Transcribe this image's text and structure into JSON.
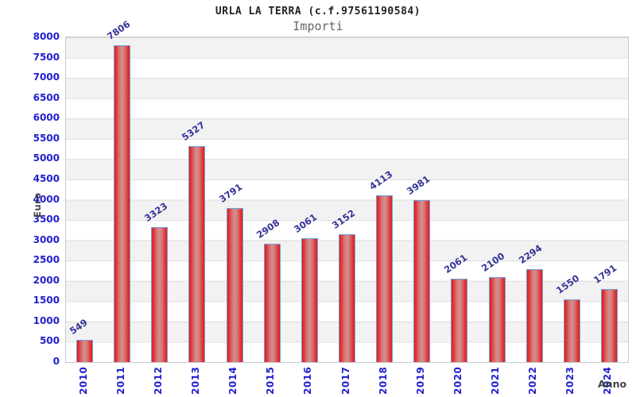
{
  "chart_data": {
    "type": "bar",
    "title": "URLA LA TERRA (c.f.97561190584)",
    "subtitle": "Importi",
    "xlabel": "Anno",
    "ylabel": "Euro",
    "categories": [
      "2010",
      "2011",
      "2012",
      "2013",
      "2014",
      "2015",
      "2016",
      "2017",
      "2018",
      "2019",
      "2020",
      "2021",
      "2022",
      "2023",
      "2024"
    ],
    "values": [
      549,
      7806,
      3323,
      5327,
      3791,
      2908,
      3061,
      3152,
      4113,
      3981,
      2061,
      2100,
      2294,
      1550,
      1791
    ],
    "ylim": [
      0,
      8000
    ],
    "ytick_step": 500,
    "yticks": [
      0,
      500,
      1000,
      1500,
      2000,
      2500,
      3000,
      3500,
      4000,
      4500,
      5000,
      5500,
      6000,
      6500,
      7000,
      7500,
      8000
    ],
    "grid": true,
    "legend": false,
    "band_colors": [
      "#f2f2f2",
      "#ffffff"
    ],
    "bar_color": "#e01e1e",
    "bar_highlight_color": "#cd9292",
    "bar_border_color": "#6fa0dc",
    "tick_label_color": "#2121d1",
    "value_label_color": "#333399",
    "axis_title_color": "#444444",
    "plot_border_color": "#c9c9c9"
  }
}
